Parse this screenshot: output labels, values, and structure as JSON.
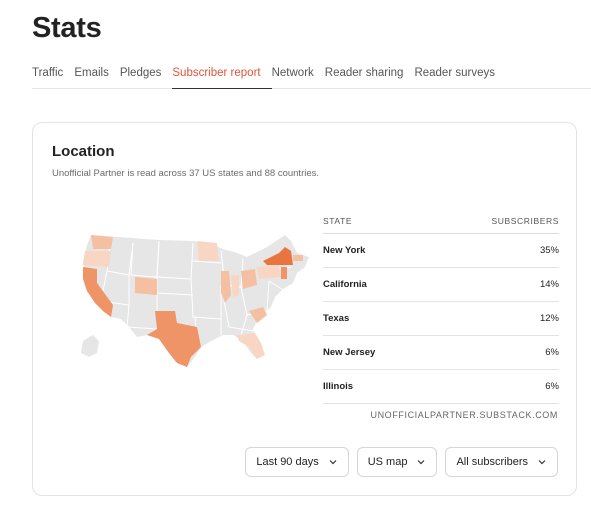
{
  "header": {
    "title": "Stats"
  },
  "tabs": [
    {
      "label": "Traffic"
    },
    {
      "label": "Emails"
    },
    {
      "label": "Pledges"
    },
    {
      "label": "Subscriber report",
      "active": true
    },
    {
      "label": "Network"
    },
    {
      "label": "Reader sharing"
    },
    {
      "label": "Reader surveys"
    }
  ],
  "location": {
    "title": "Location",
    "subtitle": "Unofficial Partner is read across 37 US states and 88 countries.",
    "table": {
      "col_state": "STATE",
      "col_subscribers": "SUBSCRIBERS",
      "rows": [
        {
          "state": "New York",
          "pct": "35%"
        },
        {
          "state": "California",
          "pct": "14%"
        },
        {
          "state": "Texas",
          "pct": "12%"
        },
        {
          "state": "New Jersey",
          "pct": "6%"
        },
        {
          "state": "Illinois",
          "pct": "6%"
        }
      ]
    },
    "footnote": "UNOFFICIALPARTNER.SUBSTACK.COM",
    "map_colors": {
      "base": "#e6e6e6",
      "high": "#e8743f",
      "mid": "#ef9467",
      "low": "#f5bfa2",
      "pale": "#f8d6c3"
    }
  },
  "controls": {
    "range": "Last 90 days",
    "view": "US map",
    "audience": "All subscribers"
  }
}
